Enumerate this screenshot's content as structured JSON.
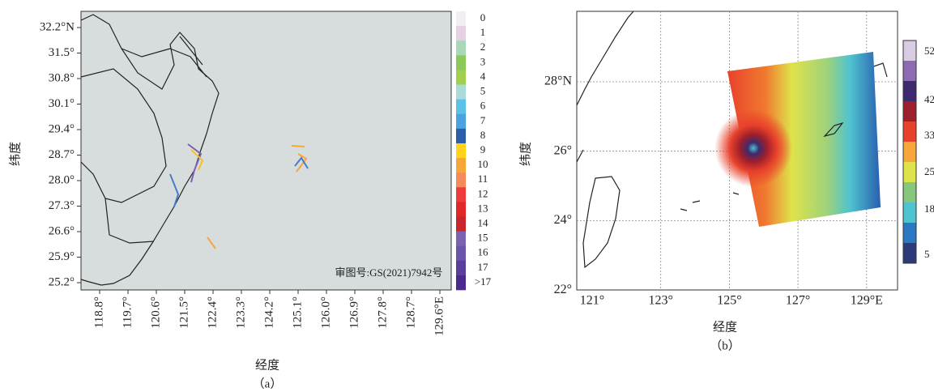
{
  "panel_a": {
    "caption": "（a）",
    "x_label": "经度",
    "y_label": "纬度",
    "y_ticks": [
      "32.2°N",
      "31.5°",
      "30.8°",
      "30.1°",
      "29.4°",
      "28.7°",
      "28.0°",
      "27.3°",
      "26.6°",
      "25.9°",
      "25.2°"
    ],
    "x_ticks": [
      "118.8°",
      "119.7°",
      "120.6°",
      "121.5°",
      "122.4°",
      "123.3°",
      "124.2°",
      "125.1°",
      "126.0°",
      "126.9°",
      "127.8°",
      "128.7°",
      "129.6°E"
    ],
    "annotation": "审图号:GS(2021)7942号",
    "legend": [
      {
        "label": "0",
        "color": "#f3eef3"
      },
      {
        "label": "1",
        "color": "#e7d0e3"
      },
      {
        "label": "2",
        "color": "#a8d8b8"
      },
      {
        "label": "3",
        "color": "#8cc85a"
      },
      {
        "label": "4",
        "color": "#a3cf4f"
      },
      {
        "label": "5",
        "color": "#a9dbd9"
      },
      {
        "label": "6",
        "color": "#5bc2e7"
      },
      {
        "label": "7",
        "color": "#4aa3df"
      },
      {
        "label": "8",
        "color": "#2b5ea8"
      },
      {
        "label": "9",
        "color": "#ffd31b"
      },
      {
        "label": "10",
        "color": "#f7a63a"
      },
      {
        "label": "11",
        "color": "#f58a5a"
      },
      {
        "label": "12",
        "color": "#ee3b3b"
      },
      {
        "label": "13",
        "color": "#e2272a"
      },
      {
        "label": "14",
        "color": "#c8262d"
      },
      {
        "label": "15",
        "color": "#7b63b0"
      },
      {
        "label": "16",
        "color": "#6a56a8"
      },
      {
        "label": "17",
        "color": "#5b3f9c"
      },
      {
        "label": ">17",
        "color": "#4a2a8e"
      }
    ]
  },
  "panel_b": {
    "caption": "（b）",
    "x_label": "经度",
    "y_label": "纬度",
    "y_ticks": [
      "28°N",
      "26°",
      "24°",
      "22°"
    ],
    "x_ticks": [
      "121°",
      "123°",
      "125°",
      "127°",
      "129°E"
    ],
    "colorbar": {
      "ticks": [
        52,
        42,
        33,
        25,
        18,
        5
      ],
      "colors": [
        "#d8cce3",
        "#8c6bb1",
        "#3d2a6e",
        "#9e1f2c",
        "#e8412b",
        "#f7a63a",
        "#dfe34a",
        "#84c77d",
        "#4fc3d0",
        "#2a78c1",
        "#2c3a7a"
      ]
    }
  }
}
